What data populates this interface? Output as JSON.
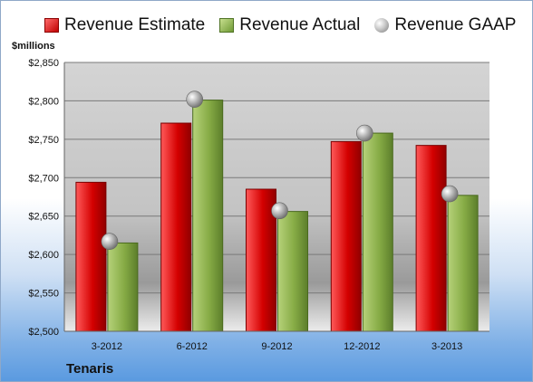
{
  "legend": {
    "estimate": "Revenue Estimate",
    "actual": "Revenue Actual",
    "gaap": "Revenue GAAP"
  },
  "unit_label": "$millions",
  "company": "Tenaris",
  "colors": {
    "estimate": "#c00000",
    "actual": "#7a9e3c",
    "plot_bg": "#c8c8c8"
  },
  "chart_data": {
    "type": "bar",
    "categories": [
      "3-2012",
      "6-2012",
      "9-2012",
      "12-2012",
      "3-2013"
    ],
    "series": [
      {
        "name": "Revenue Estimate",
        "values": [
          2694,
          2771,
          2685,
          2747,
          2742
        ]
      },
      {
        "name": "Revenue Actual",
        "values": [
          2615,
          2801,
          2656,
          2758,
          2677
        ]
      },
      {
        "name": "Revenue GAAP",
        "values": [
          2617,
          2802,
          2657,
          2758,
          2679
        ],
        "marker": "sphere"
      }
    ],
    "ylabel": "$millions",
    "ylim": [
      2500,
      2850
    ],
    "yticks": [
      2500,
      2550,
      2600,
      2650,
      2700,
      2750,
      2800,
      2850
    ],
    "ytick_labels": [
      "$2,500",
      "$2,550",
      "$2,600",
      "$2,650",
      "$2,700",
      "$2,750",
      "$2,800",
      "$2,850"
    ],
    "grid": true,
    "legend_position": "top"
  }
}
